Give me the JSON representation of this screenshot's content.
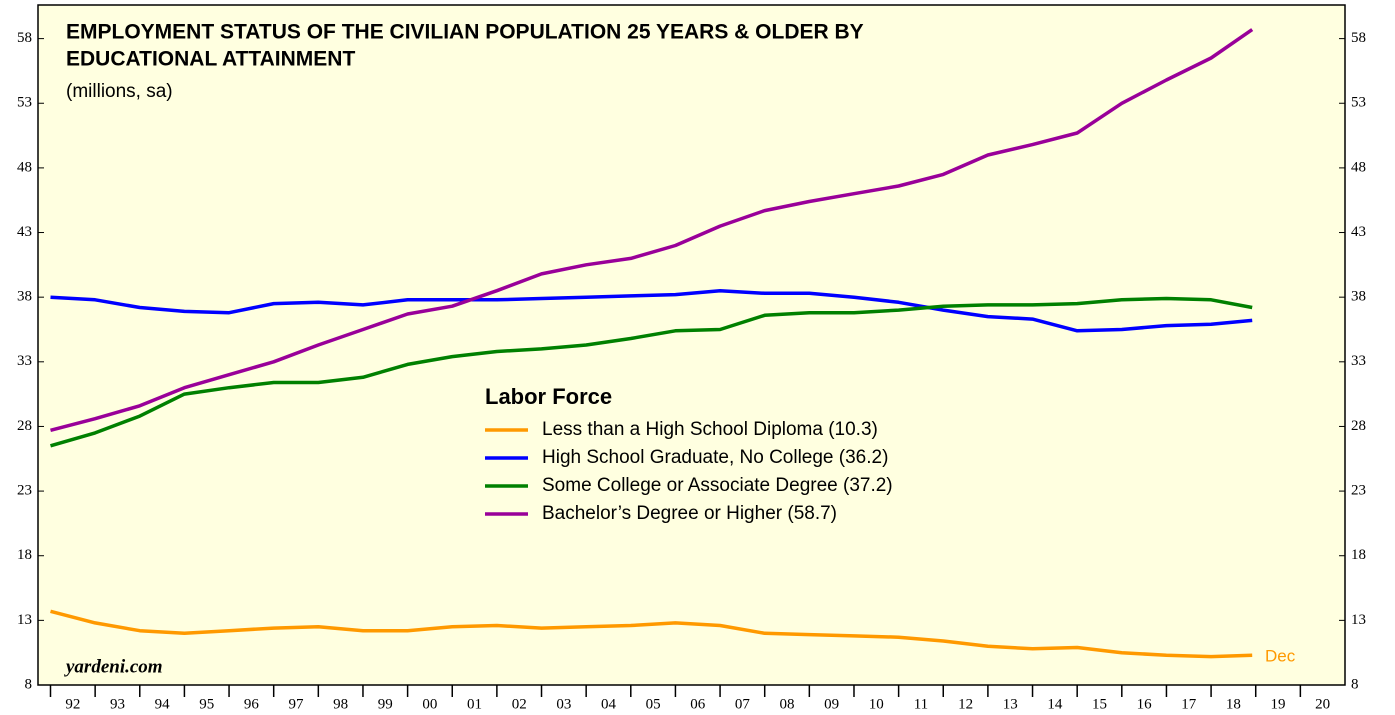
{
  "chart_data": {
    "type": "line",
    "title": [
      "EMPLOYMENT STATUS OF THE CIVILIAN POPULATION 25 YEARS & OLDER BY",
      "EDUCATIONAL ATTAINMENT"
    ],
    "subtitle": "(millions, sa)",
    "legend_title": "Labor Force",
    "annotations": [
      "yardeni.com",
      "Dec"
    ],
    "x": [
      1992,
      1993,
      1994,
      1995,
      1996,
      1997,
      1998,
      1999,
      2000,
      2001,
      2002,
      2003,
      2004,
      2005,
      2006,
      2007,
      2008,
      2009,
      2010,
      2011,
      2012,
      2013,
      2014,
      2015,
      2016,
      2017,
      2018,
      2018.92
    ],
    "series": [
      {
        "name": "Less than a High School Diploma (10.3)",
        "color": "#ff9900",
        "values": [
          13.7,
          12.8,
          12.2,
          12.0,
          12.2,
          12.4,
          12.5,
          12.2,
          12.2,
          12.5,
          12.6,
          12.4,
          12.5,
          12.6,
          12.8,
          12.6,
          12.0,
          11.9,
          11.8,
          11.7,
          11.4,
          11.0,
          10.8,
          10.9,
          10.5,
          10.3,
          10.2,
          10.3
        ]
      },
      {
        "name": "High School Graduate, No College (36.2)",
        "color": "#0000ff",
        "values": [
          38.0,
          37.8,
          37.2,
          36.9,
          36.8,
          37.5,
          37.6,
          37.4,
          37.8,
          37.8,
          37.8,
          37.9,
          38.0,
          38.1,
          38.2,
          38.5,
          38.3,
          38.3,
          38.0,
          37.6,
          37.0,
          36.5,
          36.3,
          35.4,
          35.5,
          35.8,
          35.9,
          36.2
        ]
      },
      {
        "name": "Some College or Associate Degree (37.2)",
        "color": "#008000",
        "values": [
          26.5,
          27.5,
          28.8,
          30.5,
          31.0,
          31.4,
          31.4,
          31.8,
          32.8,
          33.4,
          33.8,
          34.0,
          34.3,
          34.8,
          35.4,
          35.5,
          36.6,
          36.8,
          36.8,
          37.0,
          37.3,
          37.4,
          37.4,
          37.5,
          37.8,
          37.9,
          37.8,
          37.2
        ]
      },
      {
        "name": "Bachelor’s Degree or Higher (58.7)",
        "color": "#990099",
        "values": [
          27.7,
          28.6,
          29.6,
          31.0,
          32.0,
          33.0,
          34.3,
          35.5,
          36.7,
          37.3,
          38.5,
          39.8,
          40.5,
          41.0,
          42.0,
          43.5,
          44.7,
          45.4,
          46.0,
          46.6,
          47.5,
          49.0,
          49.8,
          50.7,
          53.0,
          54.8,
          56.5,
          58.7
        ]
      }
    ],
    "xlim": [
      1991.72,
      2021
    ],
    "xticks": [
      {
        "value": 1992,
        "label": "92"
      },
      {
        "value": 1993,
        "label": "93"
      },
      {
        "value": 1994,
        "label": "94"
      },
      {
        "value": 1995,
        "label": "95"
      },
      {
        "value": 1996,
        "label": "96"
      },
      {
        "value": 1997,
        "label": "97"
      },
      {
        "value": 1998,
        "label": "98"
      },
      {
        "value": 1999,
        "label": "99"
      },
      {
        "value": 2000,
        "label": "00"
      },
      {
        "value": 2001,
        "label": "01"
      },
      {
        "value": 2002,
        "label": "02"
      },
      {
        "value": 2003,
        "label": "03"
      },
      {
        "value": 2004,
        "label": "04"
      },
      {
        "value": 2005,
        "label": "05"
      },
      {
        "value": 2006,
        "label": "06"
      },
      {
        "value": 2007,
        "label": "07"
      },
      {
        "value": 2008,
        "label": "08"
      },
      {
        "value": 2009,
        "label": "09"
      },
      {
        "value": 2010,
        "label": "10"
      },
      {
        "value": 2011,
        "label": "11"
      },
      {
        "value": 2012,
        "label": "12"
      },
      {
        "value": 2013,
        "label": "13"
      },
      {
        "value": 2014,
        "label": "14"
      },
      {
        "value": 2015,
        "label": "15"
      },
      {
        "value": 2016,
        "label": "16"
      },
      {
        "value": 2017,
        "label": "17"
      },
      {
        "value": 2018,
        "label": "18"
      },
      {
        "value": 2019,
        "label": "19"
      },
      {
        "value": 2020,
        "label": "20"
      }
    ],
    "ylim": [
      8,
      60.6
    ],
    "yticks": [
      8,
      13,
      18,
      23,
      28,
      33,
      38,
      43,
      48,
      53,
      58
    ],
    "background": "#ffffe0"
  }
}
